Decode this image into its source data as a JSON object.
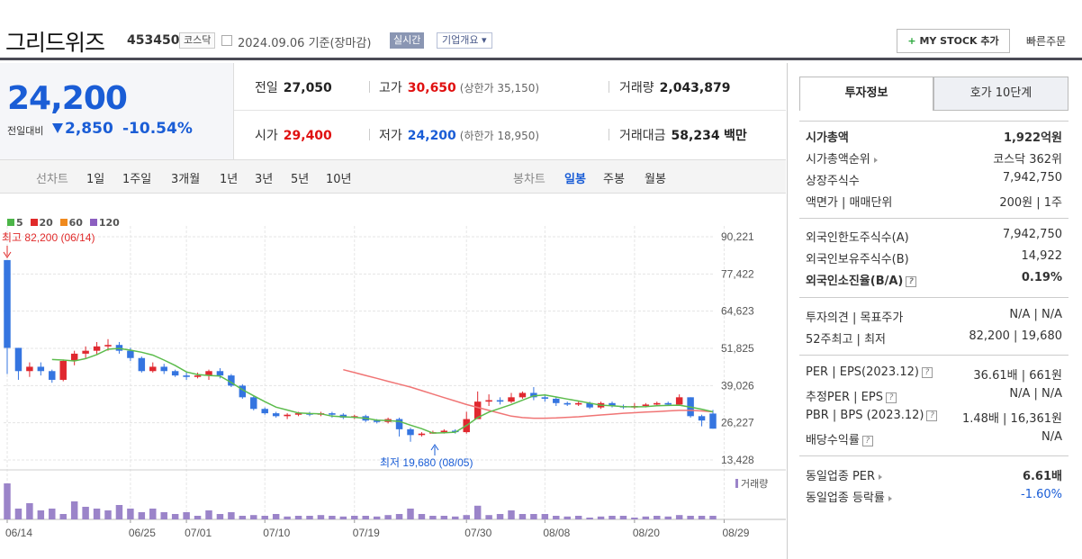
{
  "header": {
    "name": "그리드위즈",
    "code": "453450",
    "market_badge": "코스닥",
    "date": "2024.09.06 기준(장마감)",
    "live_badge": "실시간",
    "corp_badge": "기업개요",
    "mystock_label": "MY STOCK 추가",
    "quick_order": "빠른주문"
  },
  "price": {
    "current": "24,200",
    "change_label": "전일대비",
    "change": "2,850",
    "change_pct": "-10.54%"
  },
  "quote": {
    "prev_close": {
      "label": "전일",
      "value": "27,050"
    },
    "high": {
      "label": "고가",
      "value": "30,650",
      "sub": "(상한가 35,150)"
    },
    "volume": {
      "label": "거래량",
      "value": "2,043,879"
    },
    "open": {
      "label": "시가",
      "value": "29,400"
    },
    "low": {
      "label": "저가",
      "value": "24,200",
      "sub": "(하한가 18,950)"
    },
    "amount": {
      "label": "거래대금",
      "value": "58,234",
      "unit": "백만"
    }
  },
  "period_tabs": {
    "label": "선차트",
    "items": [
      "1일",
      "1주일",
      "3개월",
      "1년",
      "3년",
      "5년",
      "10년"
    ]
  },
  "candle_tabs": {
    "label": "봉차트",
    "items": [
      "일봉",
      "주봉",
      "월봉"
    ],
    "selected": "일봉"
  },
  "chart_data": {
    "type": "candlestick",
    "legend": [
      "5",
      "20",
      "60",
      "120"
    ],
    "legend_colors": [
      "#4cb548",
      "#e02a2a",
      "#f08a1e",
      "#8c5fc0"
    ],
    "y_ticks": [
      "90,221",
      "77,422",
      "64,623",
      "51,825",
      "39,026",
      "26,227",
      "13,428"
    ],
    "ylim": [
      13428,
      90221
    ],
    "x_ticks": [
      "06/14",
      "06/25",
      "07/01",
      "07/10",
      "07/19",
      "07/30",
      "08/08",
      "08/20",
      "08/29"
    ],
    "high_annotation": "최고 82,200 (06/14)",
    "low_annotation": "최저 19,680 (08/05)",
    "volume_label": "거래량",
    "candles": [
      [
        82200,
        52000,
        55000,
        82200,
        43000
      ],
      [
        52000,
        44000,
        52000,
        44000,
        41000
      ],
      [
        44000,
        45500,
        47000,
        45500,
        42000
      ],
      [
        45500,
        44000,
        47000,
        44000,
        42500
      ],
      [
        44000,
        41000,
        44500,
        41000,
        40000
      ],
      [
        41000,
        47500,
        48000,
        47000,
        40500
      ],
      [
        47500,
        50000,
        51000,
        50000,
        46000
      ],
      [
        50000,
        51000,
        52500,
        51000,
        48500
      ],
      [
        51000,
        52500,
        54000,
        52500,
        49500
      ],
      [
        52500,
        53000,
        55000,
        53000,
        51000
      ],
      [
        53000,
        51000,
        54000,
        51000,
        50000
      ],
      [
        51000,
        48500,
        52000,
        48500,
        47500
      ],
      [
        48500,
        44000,
        49000,
        44000,
        43500
      ],
      [
        44000,
        45500,
        47000,
        45500,
        43500
      ],
      [
        45500,
        44000,
        46500,
        44000,
        43000
      ],
      [
        44000,
        42500,
        44500,
        42500,
        42000
      ],
      [
        42500,
        42000,
        43500,
        42000,
        41000
      ],
      [
        42000,
        42500,
        43500,
        42500,
        41500
      ],
      [
        42500,
        44000,
        44500,
        44000,
        41000
      ],
      [
        44000,
        42500,
        45000,
        42500,
        41500
      ],
      [
        42500,
        39000,
        43000,
        39000,
        38500
      ],
      [
        39000,
        35000,
        39500,
        35000,
        34500
      ],
      [
        35000,
        31000,
        35500,
        31000,
        30500
      ],
      [
        31000,
        29500,
        31500,
        29500,
        29000
      ],
      [
        29500,
        28500,
        30000,
        28500,
        28000
      ],
      [
        28500,
        29000,
        29500,
        28500,
        27500
      ],
      [
        29000,
        29500,
        30000,
        29500,
        28500
      ],
      [
        29500,
        29000,
        30000,
        29000,
        28500
      ],
      [
        29000,
        29500,
        30000,
        29500,
        28500
      ],
      [
        29500,
        29000,
        30000,
        29000,
        28000
      ],
      [
        29000,
        28000,
        29500,
        28000,
        27500
      ],
      [
        28000,
        28500,
        29000,
        28500,
        27500
      ],
      [
        28500,
        27000,
        29000,
        27000,
        26500
      ],
      [
        27000,
        26500,
        27500,
        26500,
        26000
      ],
      [
        26500,
        27500,
        28000,
        27500,
        26000
      ],
      [
        27500,
        24000,
        28000,
        24000,
        21500
      ],
      [
        24000,
        22000,
        24500,
        22000,
        19680
      ],
      [
        22000,
        22500,
        23000,
        22500,
        21500
      ],
      [
        22500,
        23000,
        23500,
        23000,
        22500
      ],
      [
        23000,
        23500,
        24000,
        23500,
        22500
      ],
      [
        23500,
        23000,
        24000,
        23000,
        22500
      ],
      [
        23000,
        27500,
        30000,
        27500,
        22500
      ],
      [
        27500,
        33500,
        37000,
        34000,
        29500
      ],
      [
        33500,
        34000,
        36000,
        34000,
        32000
      ],
      [
        34000,
        33500,
        35000,
        33500,
        32500
      ],
      [
        33500,
        35000,
        36500,
        35000,
        33000
      ],
      [
        35000,
        36500,
        37000,
        36500,
        34500
      ],
      [
        36500,
        35000,
        38500,
        35000,
        34000
      ],
      [
        35000,
        34500,
        36000,
        34500,
        33500
      ],
      [
        34500,
        33000,
        35000,
        33000,
        32000
      ],
      [
        33000,
        32500,
        33500,
        32500,
        32000
      ],
      [
        32500,
        33000,
        33500,
        33000,
        32000
      ],
      [
        33000,
        31500,
        33500,
        31500,
        31000
      ],
      [
        31500,
        33000,
        33500,
        33000,
        31000
      ],
      [
        33000,
        32000,
        33500,
        32000,
        31500
      ],
      [
        32000,
        31500,
        32500,
        31500,
        31000
      ],
      [
        31500,
        32000,
        33000,
        32000,
        31000
      ],
      [
        32000,
        32500,
        33000,
        32500,
        31500
      ],
      [
        32500,
        33000,
        33500,
        33000,
        32000
      ],
      [
        33000,
        32500,
        33500,
        32500,
        32000
      ],
      [
        32500,
        35000,
        36000,
        35000,
        32000
      ],
      [
        35000,
        28500,
        35000,
        28500,
        28000
      ],
      [
        28500,
        27000,
        29000,
        27000,
        25000
      ],
      [
        29400,
        24200,
        30650,
        24200,
        24200
      ]
    ],
    "volume": [
      1.0,
      0.3,
      0.45,
      0.25,
      0.3,
      0.15,
      0.5,
      0.35,
      0.3,
      0.25,
      0.4,
      0.3,
      0.2,
      0.3,
      0.2,
      0.15,
      0.2,
      0.1,
      0.25,
      0.15,
      0.2,
      0.1,
      0.12,
      0.1,
      0.15,
      0.08,
      0.1,
      0.1,
      0.12,
      0.1,
      0.08,
      0.1,
      0.1,
      0.08,
      0.12,
      0.15,
      0.3,
      0.15,
      0.1,
      0.1,
      0.08,
      0.12,
      0.38,
      0.12,
      0.15,
      0.25,
      0.15,
      0.15,
      0.15,
      0.1,
      0.08,
      0.1,
      0.05,
      0.08,
      0.1,
      0.1,
      0.05,
      0.08,
      0.1,
      0.08,
      0.12,
      0.1,
      0.1,
      0.1
    ],
    "ma5": [
      null,
      null,
      null,
      null,
      48000,
      47800,
      47500,
      48300,
      49700,
      51500,
      51800,
      51200,
      50500,
      49500,
      47800,
      45900,
      43700,
      42800,
      42500,
      42300,
      40100,
      37600,
      35500,
      33500,
      31600,
      30600,
      29600,
      29400,
      29300,
      28500,
      28300,
      28100,
      27800,
      27100,
      27000,
      26700,
      25400,
      24200,
      22700,
      22800,
      23000,
      25300,
      28000,
      29900,
      31200,
      32500,
      34000,
      35500,
      35800,
      35100,
      34400,
      33700,
      33000,
      32300,
      32100,
      31800,
      31700,
      31800,
      32100,
      32200,
      32300,
      31600,
      30900,
      30000
    ],
    "ma20": [
      null,
      null,
      null,
      null,
      null,
      null,
      null,
      null,
      null,
      null,
      null,
      null,
      null,
      null,
      null,
      null,
      null,
      null,
      null,
      null,
      null,
      null,
      null,
      null,
      null,
      null,
      null,
      null,
      null,
      null,
      44500,
      43500,
      42500,
      41500,
      40500,
      39500,
      38500,
      37300,
      36100,
      34900,
      33700,
      32500,
      31500,
      30500,
      29500,
      28500,
      28000,
      27800,
      27800,
      27900,
      28100,
      28300,
      28600,
      28900,
      29200,
      29500,
      29700,
      29900,
      30100,
      30300,
      30500,
      30500,
      30300,
      30000
    ]
  },
  "info_tabs": [
    "투자정보",
    "호가 10단계"
  ],
  "info": {
    "market_cap": {
      "label": "시가총액",
      "value": "1,922억원"
    },
    "market_cap_rank": {
      "label": "시가총액순위",
      "value": "코스닥 362위"
    },
    "listed_shares": {
      "label": "상장주식수",
      "value": "7,942,750"
    },
    "par_unit": {
      "label": "액면가 | 매매단위",
      "value": "200원 | 1주"
    },
    "foreign_limit": {
      "label": "외국인한도주식수(A)",
      "value": "7,942,750"
    },
    "foreign_hold": {
      "label": "외국인보유주식수(B)",
      "value": "14,922"
    },
    "foreign_ratio": {
      "label": "외국인소진율(B/A)",
      "value": "0.19%"
    },
    "opinion": {
      "label": "투자의견 | 목표주가",
      "value": "N/A | N/A"
    },
    "week52": {
      "label": "52주최고 | 최저",
      "value": "82,200 | 19,680"
    },
    "per_eps": {
      "label": "PER | EPS(2023.12)",
      "value": "36.61배 | 661원"
    },
    "est_per": {
      "label": "추정PER | EPS",
      "value": "N/A | N/A"
    },
    "pbr_bps": {
      "label": "PBR | BPS (2023.12)",
      "value": "1.48배 | 16,361원"
    },
    "dividend": {
      "label": "배당수익률",
      "value": "N/A"
    },
    "industry_per": {
      "label": "동일업종 PER",
      "value": "6.61배"
    },
    "industry_chg": {
      "label": "동일업종 등락률",
      "value": "-1.60%"
    }
  }
}
